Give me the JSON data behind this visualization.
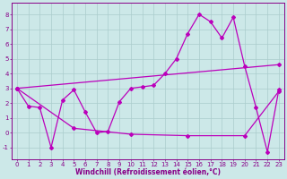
{
  "main_line_x": [
    0,
    1,
    2,
    3,
    4,
    5,
    6,
    7,
    8,
    9,
    10,
    11,
    12,
    13,
    14,
    15,
    16,
    17,
    18,
    19,
    20,
    21,
    22,
    23
  ],
  "main_line_y": [
    3.0,
    1.8,
    1.7,
    -1.0,
    2.2,
    2.9,
    1.4,
    0.0,
    0.1,
    2.1,
    3.0,
    3.1,
    3.2,
    4.0,
    5.0,
    6.7,
    8.0,
    7.5,
    6.4,
    7.8,
    4.5,
    1.7,
    -1.3,
    2.9
  ],
  "upper_line_x": [
    0,
    23
  ],
  "upper_line_y": [
    3.0,
    4.6
  ],
  "lower_line_x": [
    0,
    5,
    10,
    15,
    20,
    23
  ],
  "lower_line_y": [
    3.0,
    0.3,
    -0.1,
    -0.2,
    -0.2,
    2.8
  ],
  "line_color": "#bb00bb",
  "bg_color": "#cce8e8",
  "grid_color": "#aacccc",
  "xlabel": "Windchill (Refroidissement éolien,°C)",
  "xlim": [
    -0.5,
    23.5
  ],
  "ylim": [
    -1.8,
    8.8
  ],
  "yticks": [
    -1,
    0,
    1,
    2,
    3,
    4,
    5,
    6,
    7,
    8
  ],
  "xticks": [
    0,
    1,
    2,
    3,
    4,
    5,
    6,
    7,
    8,
    9,
    10,
    11,
    12,
    13,
    14,
    15,
    16,
    17,
    18,
    19,
    20,
    21,
    22,
    23
  ],
  "tick_fontsize": 5.0,
  "xlabel_fontsize": 5.5,
  "tick_color": "#880088",
  "xlabel_color": "#880088"
}
